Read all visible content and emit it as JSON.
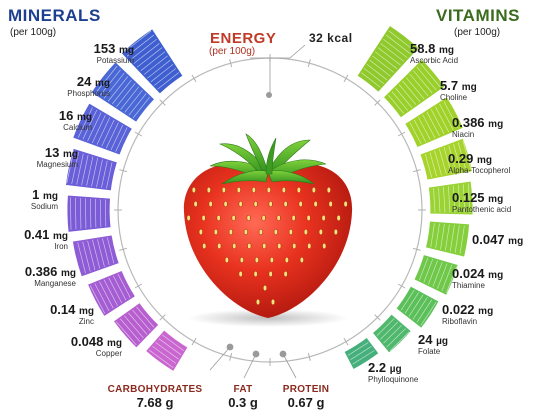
{
  "minerals": {
    "title": "MINERALS",
    "subtitle": "(per 100g)",
    "items": [
      {
        "value": "153",
        "unit": "mg",
        "name": "Potassium",
        "color": "#3f5fd0"
      },
      {
        "value": "24",
        "unit": "mg",
        "name": "Phosphorus",
        "color": "#4a67d6"
      },
      {
        "value": "16",
        "unit": "mg",
        "name": "Calcium",
        "color": "#5a62d8"
      },
      {
        "value": "13",
        "unit": "mg",
        "name": "Magnesium",
        "color": "#6a5fd8"
      },
      {
        "value": "1",
        "unit": "mg",
        "name": "Sodium",
        "color": "#7b5cd6"
      },
      {
        "value": "0.41",
        "unit": "mg",
        "name": "Iron",
        "color": "#8e5cd4"
      },
      {
        "value": "0.386",
        "unit": "mg",
        "name": "Manganese",
        "color": "#a45dd2"
      },
      {
        "value": "0.14",
        "unit": "mg",
        "name": "Zinc",
        "color": "#b85fd0"
      },
      {
        "value": "0.048",
        "unit": "mg",
        "name": "Copper",
        "color": "#c966cf"
      }
    ]
  },
  "vitamins": {
    "title": "VITAMINS",
    "subtitle": "(per 100g)",
    "items": [
      {
        "value": "58.8",
        "unit": "mg",
        "name": "Ascorbic Acid",
        "color": "#8fc92c"
      },
      {
        "value": "5.7",
        "unit": "mg",
        "name": "Choline",
        "color": "#98cf2a"
      },
      {
        "value": "0.386",
        "unit": "mg",
        "name": "Niacin",
        "color": "#a0d22a"
      },
      {
        "value": "0.29",
        "unit": "mg",
        "name": "Alpha-Tocopherol",
        "color": "#a6d42c"
      },
      {
        "value": "0.125",
        "unit": "mg",
        "name": "Pantothenic acid",
        "color": "#9ad334"
      },
      {
        "value": "0.047",
        "unit": "mg",
        "name": "",
        "color": "#86cf3c"
      },
      {
        "value": "0.024",
        "unit": "mg",
        "name": "Thiamine",
        "color": "#6fc84a"
      },
      {
        "value": "0.022",
        "unit": "mg",
        "name": "Riboflavin",
        "color": "#5cc05a"
      },
      {
        "value": "24",
        "unit": "µg",
        "name": "Folate",
        "color": "#4fb86c"
      },
      {
        "value": "2.2",
        "unit": "µg",
        "name": "Phylloquinone",
        "color": "#46b07c"
      }
    ]
  },
  "energy": {
    "title": "ENERGY",
    "subtitle": "(per 100g)",
    "value": "32 kcal",
    "color": "#c13a28"
  },
  "macros": [
    {
      "name": "CARBOHYDRATES",
      "value": "7.68 g"
    },
    {
      "name": "FAT",
      "value": "0.3 g"
    },
    {
      "name": "PROTEIN",
      "value": "0.67 g"
    }
  ],
  "illustration": {
    "subject": "strawberry-illustration"
  }
}
